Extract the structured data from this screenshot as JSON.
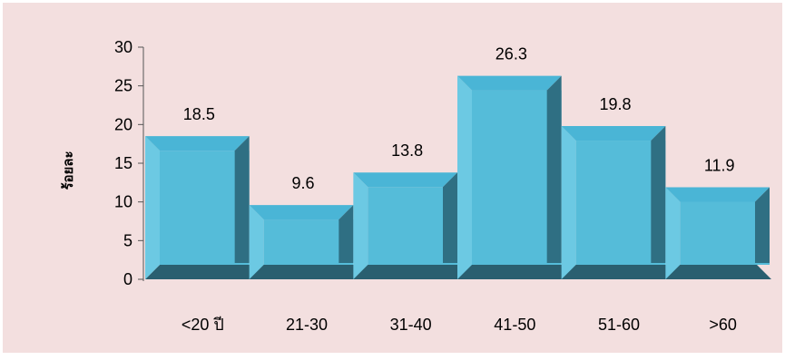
{
  "chart_data": {
    "type": "bar",
    "style": "3d-histogram",
    "title": "",
    "xlabel": "",
    "ylabel": "ร้อยละ",
    "categories": [
      "<20 ปี",
      "21-30",
      "31-40",
      "41-50",
      "51-60",
      ">60"
    ],
    "values": [
      18.5,
      9.6,
      13.8,
      26.3,
      19.8,
      11.9
    ],
    "value_labels": [
      "18.5",
      "9.6",
      "13.8",
      "26.3",
      "19.8",
      "11.9"
    ],
    "ylim": [
      0,
      30
    ],
    "yticks": [
      0,
      5,
      10,
      15,
      20,
      25,
      30
    ],
    "grid": false,
    "legend": "none"
  },
  "colors": {
    "background": "#f3dfdf",
    "page": "#ffffff",
    "bar_front": "#55bcd9",
    "bar_top": "#4ab5d6",
    "bar_side": "#2f6f83",
    "bar_bevel": "#6cc9e3",
    "floor": "#2a5f70",
    "axis": "#555555",
    "text": "#000000"
  }
}
